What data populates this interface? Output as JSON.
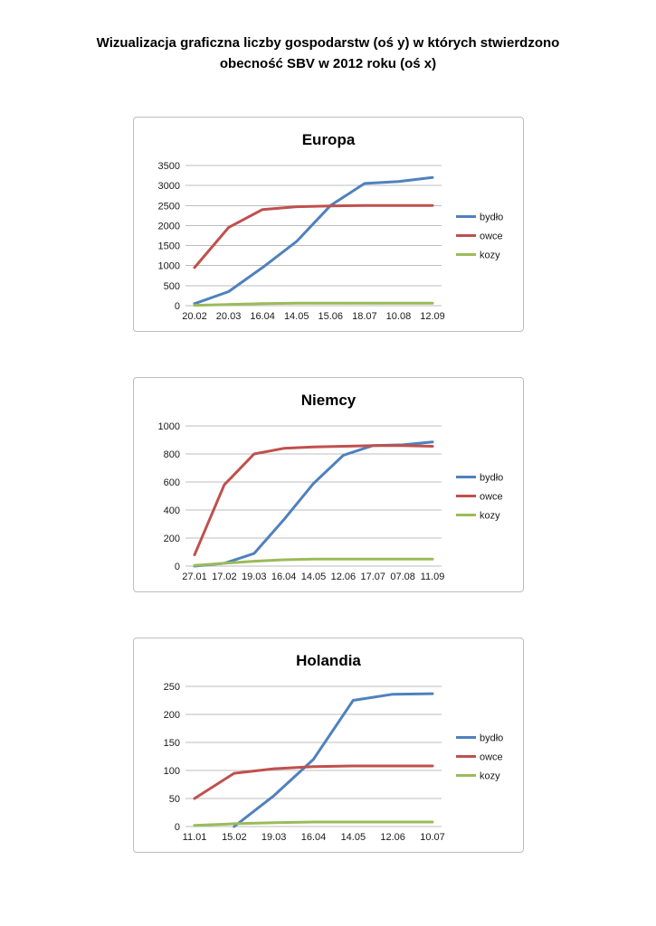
{
  "page": {
    "title_line1": "Wizualizacja graficzna liczby gospodarstw (oś y) w których stwierdzono",
    "title_line2": "obecność SBV w 2012 roku (oś x)"
  },
  "colors": {
    "bydlo": "#4F81BD",
    "owce": "#C0504D",
    "kozy": "#9BBB59",
    "gridline": "#bdbdbd"
  },
  "chart_data": [
    {
      "type": "line",
      "title": "Europa",
      "categories": [
        "20.02",
        "20.03",
        "16.04",
        "14.05",
        "15.06",
        "18.07",
        "10.08",
        "12.09"
      ],
      "xlabel": "",
      "ylabel": "",
      "ylim": [
        0,
        3500
      ],
      "ytick_step": 500,
      "grid": true,
      "legend_position": "right",
      "series": [
        {
          "name": "bydło",
          "color": "#4F81BD",
          "values": [
            50,
            350,
            950,
            1600,
            2500,
            3050,
            3100,
            3200
          ]
        },
        {
          "name": "owce",
          "color": "#C0504D",
          "values": [
            950,
            1950,
            2400,
            2470,
            2490,
            2500,
            2500,
            2500
          ]
        },
        {
          "name": "kozy",
          "color": "#9BBB59",
          "values": [
            10,
            30,
            50,
            60,
            60,
            60,
            60,
            60
          ]
        }
      ]
    },
    {
      "type": "line",
      "title": "Niemcy",
      "categories": [
        "27.01",
        "17.02",
        "19.03",
        "16.04",
        "14.05",
        "12.06",
        "17.07",
        "07.08",
        "11.09"
      ],
      "xlabel": "",
      "ylabel": "",
      "ylim": [
        0,
        1000
      ],
      "ytick_step": 200,
      "grid": true,
      "legend_position": "right",
      "series": [
        {
          "name": "bydło",
          "color": "#4F81BD",
          "values": [
            0,
            20,
            90,
            330,
            590,
            790,
            860,
            865,
            885
          ]
        },
        {
          "name": "owce",
          "color": "#C0504D",
          "values": [
            80,
            580,
            800,
            840,
            850,
            855,
            860,
            860,
            855
          ]
        },
        {
          "name": "kozy",
          "color": "#9BBB59",
          "values": [
            5,
            20,
            35,
            45,
            50,
            50,
            50,
            50,
            50
          ]
        }
      ]
    },
    {
      "type": "line",
      "title": "Holandia",
      "categories": [
        "11.01",
        "15.02",
        "19.03",
        "16.04",
        "14.05",
        "12.06",
        "10.07"
      ],
      "xlabel": "",
      "ylabel": "",
      "ylim": [
        0,
        250
      ],
      "ytick_step": 50,
      "grid": true,
      "legend_position": "right",
      "series": [
        {
          "name": "bydło",
          "color": "#4F81BD",
          "values": [
            null,
            0,
            55,
            120,
            225,
            236,
            237
          ]
        },
        {
          "name": "owce",
          "color": "#C0504D",
          "values": [
            50,
            95,
            103,
            107,
            108,
            108,
            108
          ]
        },
        {
          "name": "kozy",
          "color": "#9BBB59",
          "values": [
            2,
            5,
            7,
            8,
            8,
            8,
            8
          ]
        }
      ]
    }
  ]
}
